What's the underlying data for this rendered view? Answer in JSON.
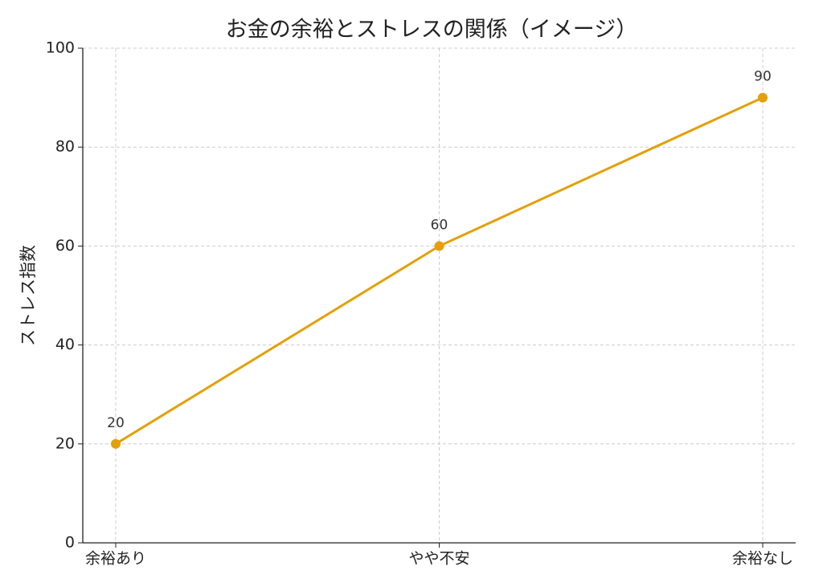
{
  "chart_data": {
    "type": "line",
    "title": "お金の余裕とストレスの関係（イメージ）",
    "y_label": "ストレス指数",
    "categories": [
      "余裕あり",
      "やや不安",
      "余裕なし"
    ],
    "values": [
      20,
      60,
      90
    ],
    "color": "#e3a008",
    "ylim": [
      0,
      100
    ],
    "yticks": [
      0,
      20,
      40,
      60,
      80,
      100
    ],
    "grid": true
  }
}
